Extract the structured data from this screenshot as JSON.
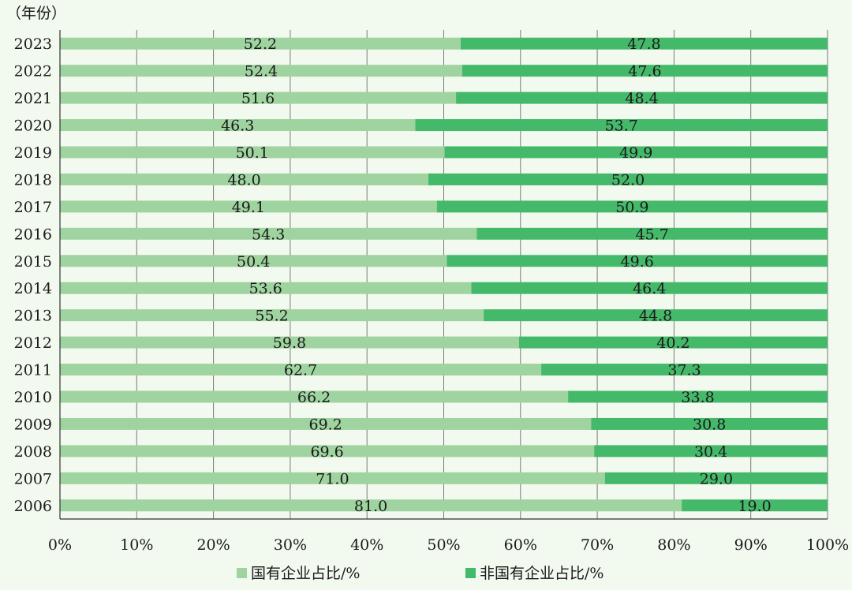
{
  "chart_data": {
    "type": "bar",
    "orientation": "horizontal",
    "stacked": true,
    "title": "",
    "ylabel": "（年份）",
    "xlabel": "",
    "categories": [
      "2023",
      "2022",
      "2021",
      "2020",
      "2019",
      "2018",
      "2017",
      "2016",
      "2015",
      "2014",
      "2013",
      "2012",
      "2011",
      "2010",
      "2009",
      "2008",
      "2007",
      "2006"
    ],
    "series": [
      {
        "name": "国有企业占比/%",
        "color": "#9fd39f",
        "values": [
          52.2,
          52.4,
          51.6,
          46.3,
          50.1,
          48.0,
          49.1,
          54.3,
          50.4,
          53.6,
          55.2,
          59.8,
          62.7,
          66.2,
          69.2,
          69.6,
          71.0,
          81.0
        ],
        "labels": [
          "52.2",
          "52.4",
          "51.6",
          "46.3",
          "50.1",
          "48.0",
          "49.1",
          "54.3",
          "50.4",
          "53.6",
          "55.2",
          "59.8",
          "62.7",
          "66.2",
          "69.2",
          "69.6",
          "71.0",
          "81.0"
        ]
      },
      {
        "name": "非国有企业占比/%",
        "color": "#45b96a",
        "values": [
          47.8,
          47.6,
          48.4,
          53.7,
          49.9,
          52.0,
          50.9,
          45.7,
          49.6,
          46.4,
          44.8,
          40.2,
          37.3,
          33.8,
          30.8,
          30.4,
          29.0,
          19.0
        ],
        "labels": [
          "47.8",
          "47.6",
          "48.4",
          "53.7",
          "49.9",
          "52.0",
          "50.9",
          "45.7",
          "49.6",
          "46.4",
          "44.8",
          "40.2",
          "37.3",
          "33.8",
          "30.8",
          "30.4",
          "29.0",
          "19.0"
        ]
      }
    ],
    "xlim": [
      0,
      100
    ],
    "xticks": [
      "0%",
      "10%",
      "20%",
      "30%",
      "40%",
      "50%",
      "60%",
      "70%",
      "80%",
      "90%",
      "100%"
    ],
    "grid": "vertical",
    "legend_position": "bottom"
  }
}
